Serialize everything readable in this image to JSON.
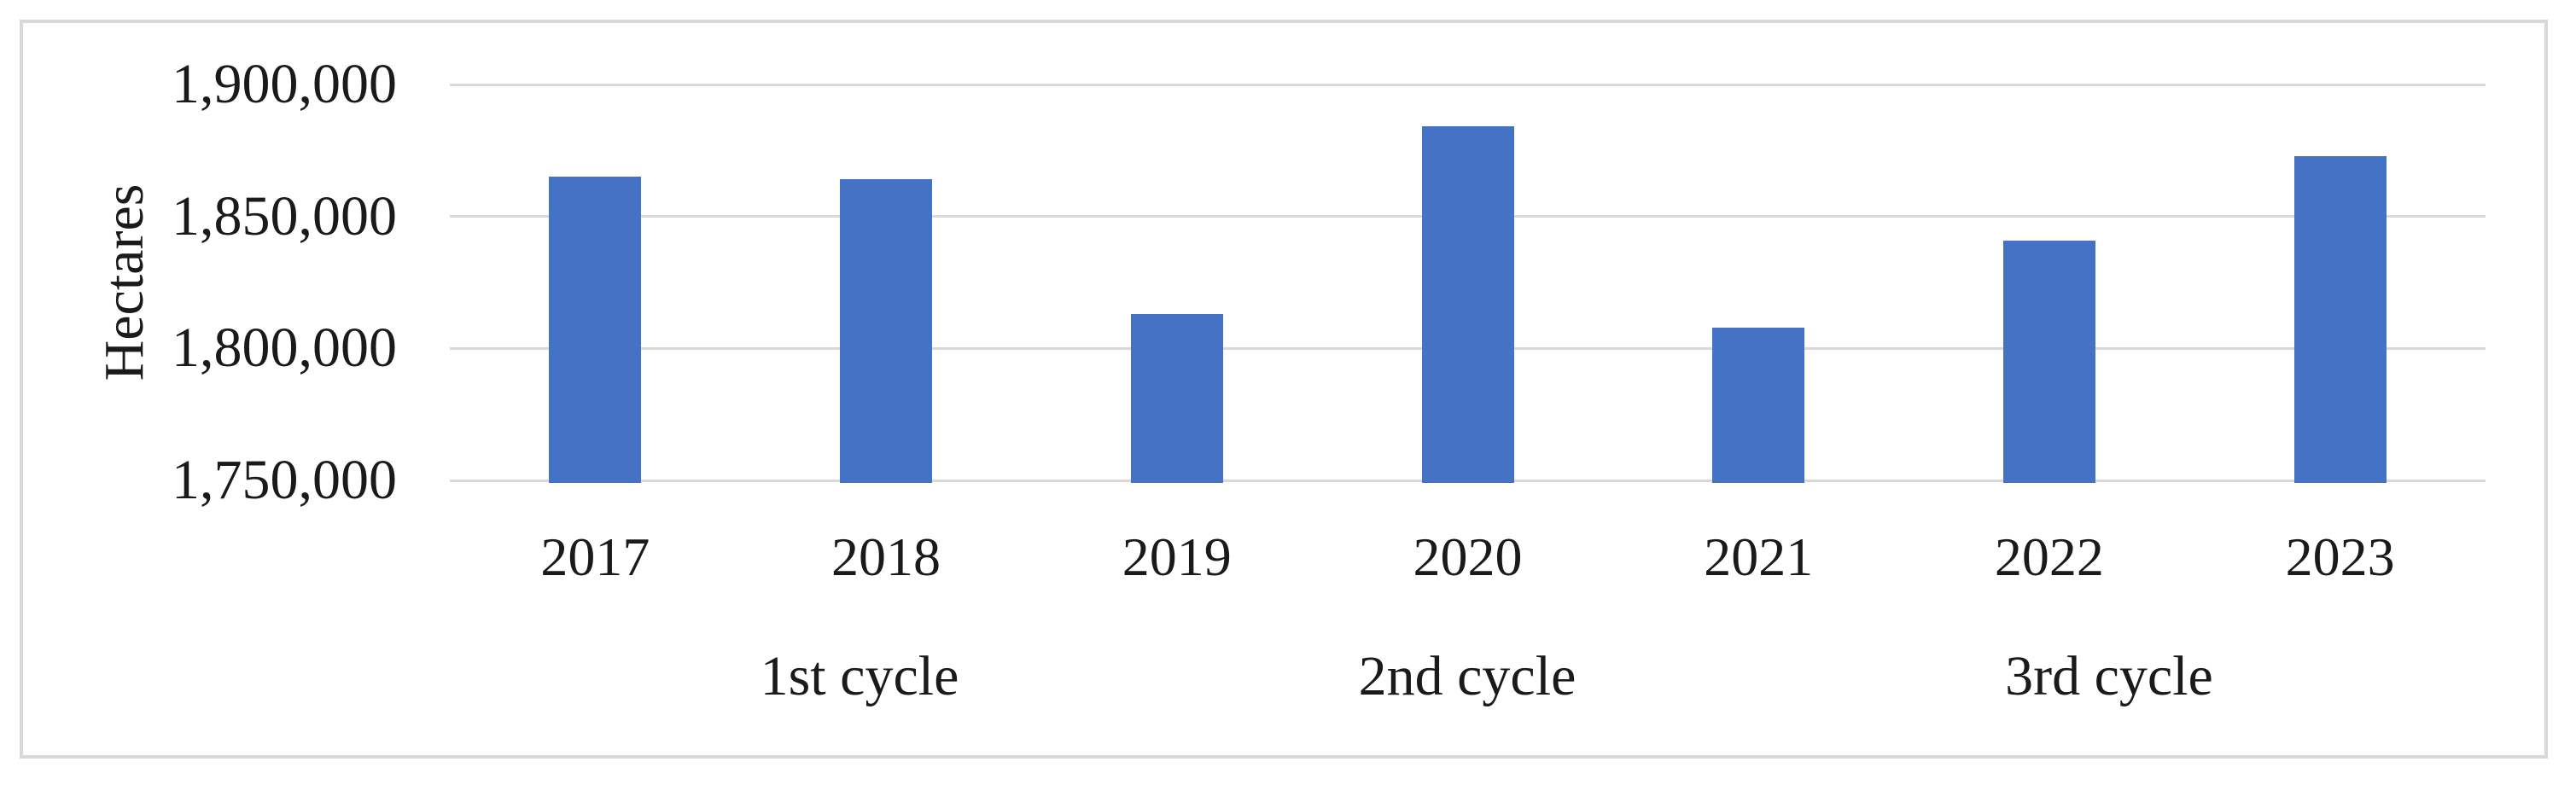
{
  "chart_data": {
    "type": "bar",
    "title": "",
    "ylabel": "Hectares",
    "xlabel": "",
    "categories": [
      "2017",
      "2018",
      "2019",
      "2020",
      "2021",
      "2022",
      "2023"
    ],
    "values": [
      1865000,
      1864000,
      1813000,
      1884000,
      1808000,
      1841000,
      1873000
    ],
    "group_labels": [
      "1st cycle",
      "2nd cycle",
      "3rd cycle"
    ],
    "y_ticks": [
      {
        "label": "1,900,000",
        "value": 1900000
      },
      {
        "label": "1,850,000",
        "value": 1850000
      },
      {
        "label": "1,800,000",
        "value": 1800000
      },
      {
        "label": "1,750,000",
        "value": 1750000
      }
    ],
    "ylim": [
      1750000,
      1900000
    ],
    "grid": true,
    "legend": "none",
    "units": "hectares",
    "colors": {
      "bar": "#4472C4",
      "gridline": "#D9D9D9",
      "frame_border": "#D9D9D9",
      "text": "#1A1A1A",
      "background": "#FFFFFF"
    }
  }
}
